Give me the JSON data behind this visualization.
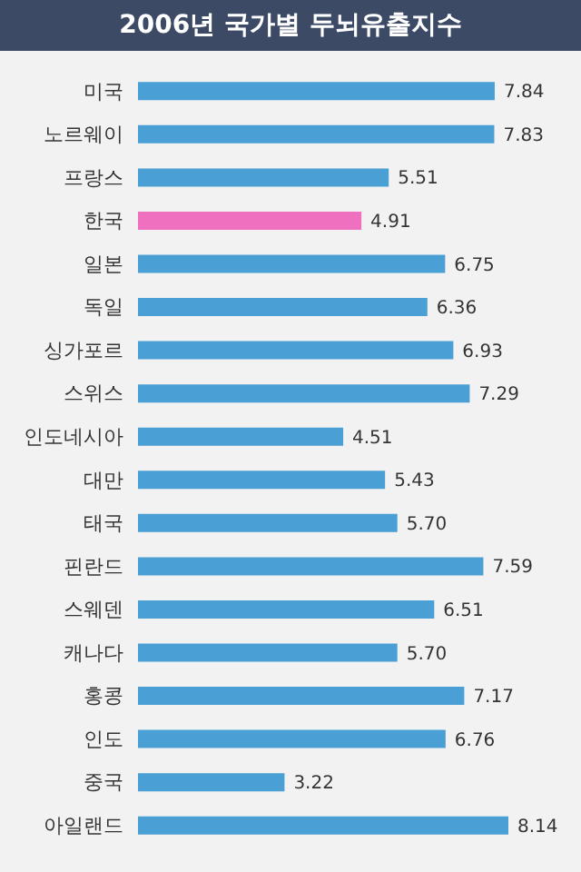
{
  "chart_data": {
    "type": "bar",
    "orientation": "horizontal",
    "title": "2006년 국가별 두뇌유출지수",
    "categories": [
      "미국",
      "노르웨이",
      "프랑스",
      "한국",
      "일본",
      "독일",
      "싱가포르",
      "스위스",
      "인도네시아",
      "대만",
      "태국",
      "핀란드",
      "스웨덴",
      "캐나다",
      "홍콩",
      "인도",
      "중국",
      "아일랜드"
    ],
    "values": [
      7.84,
      7.83,
      5.51,
      4.91,
      6.75,
      6.36,
      6.93,
      7.29,
      4.51,
      5.43,
      5.7,
      7.59,
      6.51,
      5.7,
      7.17,
      6.76,
      3.22,
      8.14
    ],
    "colors": [
      "#4a9fd4",
      "#4a9fd4",
      "#4a9fd4",
      "#f070c0",
      "#4a9fd4",
      "#4a9fd4",
      "#4a9fd4",
      "#4a9fd4",
      "#4a9fd4",
      "#4a9fd4",
      "#4a9fd4",
      "#4a9fd4",
      "#4a9fd4",
      "#4a9fd4",
      "#4a9fd4",
      "#4a9fd4",
      "#4a9fd4",
      "#4a9fd4"
    ],
    "value_labels": [
      "7.84",
      "7.83",
      "5.51",
      "4.91",
      "6.75",
      "6.36",
      "6.93",
      "7.29",
      "4.51",
      "5.43",
      "5.70",
      "7.59",
      "6.51",
      "5.70",
      "7.17",
      "6.76",
      "3.22",
      "8.14"
    ],
    "tick_labels": "y"
  }
}
